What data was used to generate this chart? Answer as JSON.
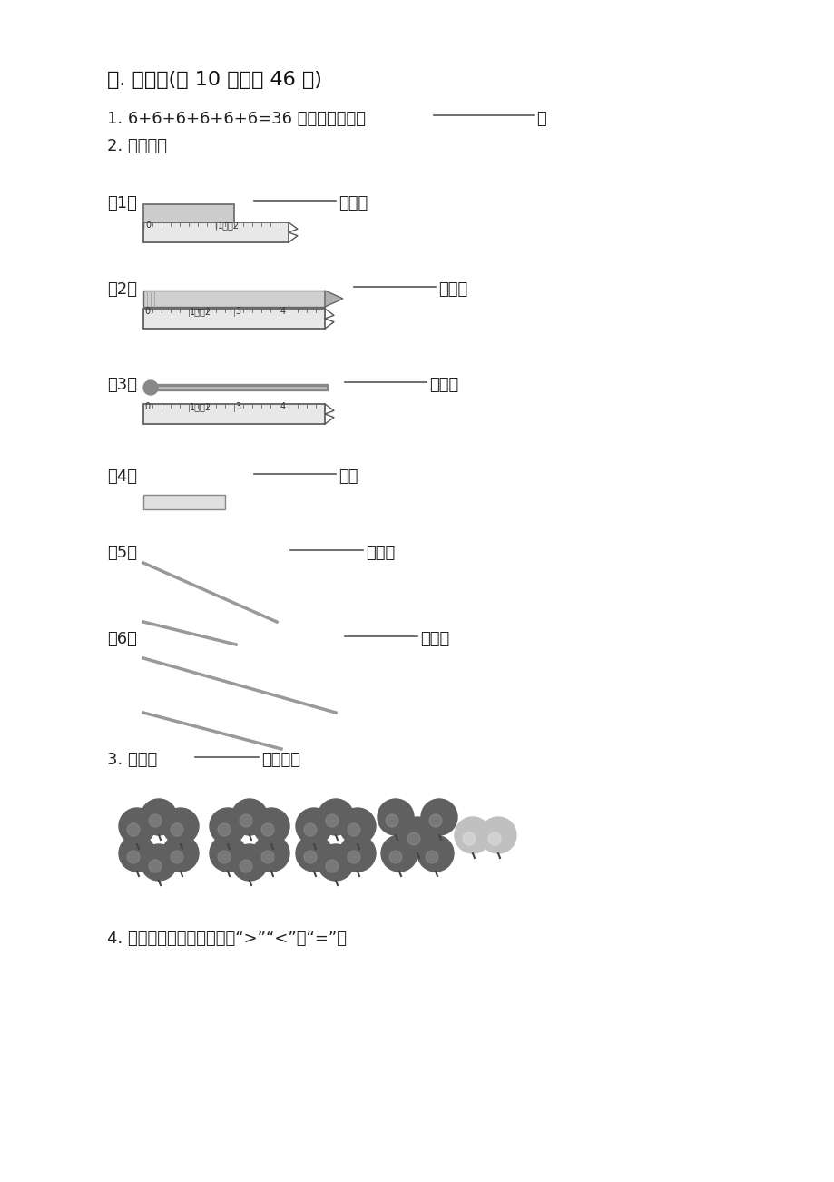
{
  "bg_color": "#ffffff",
  "title": "三. 填空题(共 10 题，共 46 分)",
  "q1_text": "1. 6+6+6+6+6+6=36 写成乘法算式是",
  "q1_blank": "___________",
  "q1_period": "。",
  "q2_text": "2. 量一量。",
  "sub1_label": "（1）",
  "sub2_label": "（2）",
  "sub3_label": "（3）",
  "sub4_label": "（4）",
  "sub5_label": "（5）",
  "sub6_label": "（6）",
  "blank_text": "________",
  "cm_text": "厘米。",
  "cm_text4": "厘米",
  "q3_text": "3. 一共有",
  "q3_blank": "______",
  "q3_end": "个苹果？",
  "q4_text": "4. 比较大小，在括号里填上“>”“<”或“=”。"
}
